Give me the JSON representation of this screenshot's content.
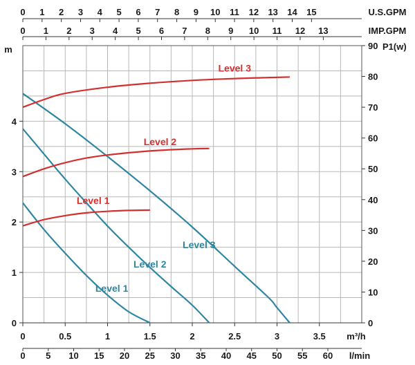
{
  "chart_data": {
    "type": "line",
    "title": "",
    "x_axis_m3h": {
      "ticks": [
        "0",
        "0.5",
        "1",
        "1.5",
        "2",
        "2.5",
        "3",
        "3.5"
      ],
      "unit": "m³/h",
      "range": [
        0,
        4.0
      ]
    },
    "x_axis_lmin": {
      "ticks": [
        "0",
        "5",
        "10",
        "15",
        "20",
        "25",
        "30",
        "35",
        "40",
        "45",
        "50",
        "55",
        "60"
      ],
      "unit": "l/min"
    },
    "x_axis_usgpm": {
      "ticks": [
        "0",
        "1",
        "2",
        "3",
        "4",
        "5",
        "6",
        "7",
        "8",
        "9",
        "10",
        "11",
        "12",
        "13",
        "14",
        "15"
      ],
      "unit": "U.S.GPM"
    },
    "x_axis_impgpm": {
      "ticks": [
        "0",
        "1",
        "2",
        "3",
        "4",
        "5",
        "6",
        "7",
        "8",
        "9",
        "10",
        "11",
        "12",
        "13"
      ],
      "unit": "IMP.GPM"
    },
    "y_left": {
      "ticks": [
        "0",
        "1",
        "2",
        "3",
        "4"
      ],
      "unit": "m",
      "range": [
        0,
        5.5
      ]
    },
    "y_right": {
      "ticks": [
        "0",
        "10",
        "20",
        "30",
        "40",
        "50",
        "60",
        "70",
        "80",
        "90"
      ],
      "unit": "P1(w)",
      "range": [
        0,
        90
      ]
    },
    "grid": true,
    "head_series": [
      {
        "name": "Level 1",
        "color": "#2e86a0",
        "axis": "left",
        "points": [
          [
            0,
            2.38
          ],
          [
            0.25,
            1.85
          ],
          [
            0.5,
            1.38
          ],
          [
            0.75,
            0.94
          ],
          [
            1.0,
            0.55
          ],
          [
            1.25,
            0.22
          ],
          [
            1.5,
            0.0
          ]
        ]
      },
      {
        "name": "Level 2",
        "color": "#2e86a0",
        "axis": "left",
        "points": [
          [
            0,
            3.85
          ],
          [
            0.25,
            3.35
          ],
          [
            0.5,
            2.85
          ],
          [
            0.75,
            2.38
          ],
          [
            1.0,
            1.92
          ],
          [
            1.25,
            1.5
          ],
          [
            1.5,
            1.1
          ],
          [
            1.75,
            0.72
          ],
          [
            2.0,
            0.35
          ],
          [
            2.2,
            0.0
          ]
        ]
      },
      {
        "name": "Level 3",
        "color": "#2e86a0",
        "axis": "left",
        "points": [
          [
            0,
            4.55
          ],
          [
            0.5,
            3.95
          ],
          [
            1.0,
            3.3
          ],
          [
            1.5,
            2.62
          ],
          [
            2.0,
            1.9
          ],
          [
            2.5,
            1.12
          ],
          [
            2.9,
            0.5
          ],
          [
            3.0,
            0.3
          ],
          [
            3.15,
            0.0
          ]
        ]
      }
    ],
    "power_series": [
      {
        "name": "Level 1",
        "color": "#d32f2f",
        "axis": "right",
        "points": [
          [
            0,
            31.5
          ],
          [
            0.25,
            33.5
          ],
          [
            0.5,
            34.8
          ],
          [
            0.75,
            35.7
          ],
          [
            1.0,
            36.2
          ],
          [
            1.25,
            36.5
          ],
          [
            1.5,
            36.6
          ]
        ]
      },
      {
        "name": "Level 2",
        "color": "#d32f2f",
        "axis": "right",
        "points": [
          [
            0,
            47.5
          ],
          [
            0.25,
            50
          ],
          [
            0.5,
            52
          ],
          [
            0.75,
            53.5
          ],
          [
            1.0,
            54.5
          ],
          [
            1.5,
            55.8
          ],
          [
            2.0,
            56.5
          ],
          [
            2.2,
            56.6
          ]
        ]
      },
      {
        "name": "Level 3",
        "color": "#d32f2f",
        "axis": "right",
        "points": [
          [
            0,
            70
          ],
          [
            0.25,
            72.5
          ],
          [
            0.5,
            74.5
          ],
          [
            1.0,
            76.5
          ],
          [
            1.5,
            77.8
          ],
          [
            2.0,
            78.7
          ],
          [
            2.5,
            79.3
          ],
          [
            3.0,
            79.7
          ],
          [
            3.15,
            79.8
          ]
        ]
      }
    ],
    "head_label_pos": [
      [
        1.05,
        0.62
      ],
      [
        1.5,
        1.1
      ],
      [
        2.08,
        1.48
      ]
    ],
    "power_label_pos": [
      [
        0.83,
        38.6
      ],
      [
        1.62,
        57.7
      ],
      [
        2.5,
        81.6
      ]
    ]
  }
}
